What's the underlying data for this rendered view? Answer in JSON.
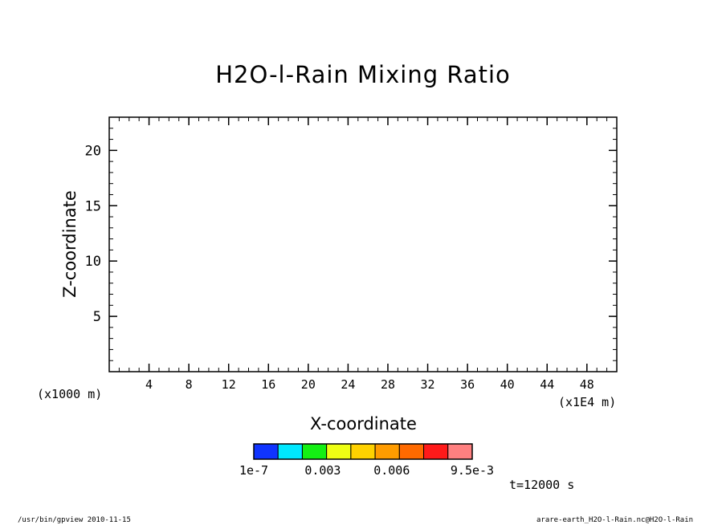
{
  "chart_data": {
    "type": "heatmap",
    "title": "H2O-l-Rain Mixing Ratio",
    "xlabel": "X-coordinate",
    "ylabel": "Z-coordinate",
    "x_unit": "(x1E4 m)",
    "y_unit": "(x1000 m)",
    "xlim": [
      0,
      51
    ],
    "ylim": [
      0,
      23
    ],
    "x_ticks": [
      "4",
      "8",
      "12",
      "16",
      "20",
      "24",
      "28",
      "32",
      "36",
      "40",
      "44",
      "48"
    ],
    "y_ticks": [
      "5",
      "10",
      "15",
      "20"
    ],
    "x_tick_values": [
      4,
      8,
      12,
      16,
      20,
      24,
      28,
      32,
      36,
      40,
      44,
      48
    ],
    "y_tick_values": [
      5,
      10,
      15,
      20
    ],
    "values": [],
    "colorbar": {
      "colors": [
        "#1034ff",
        "#00e8ff",
        "#14f014",
        "#eeff14",
        "#ffd200",
        "#ff9c00",
        "#ff6a00",
        "#ff1a1a",
        "#ff8080"
      ],
      "labels": [
        "1e-7",
        "0.003",
        "0.006",
        "9.5e-3"
      ],
      "label_values": [
        1e-07,
        0.003,
        0.006,
        0.0095
      ]
    },
    "time_label": "t=12000 s"
  },
  "footer": {
    "left": "/usr/bin/gpview  2010-11-15",
    "right": "arare-earth_H2O-l-Rain.nc@H2O-l-Rain"
  }
}
